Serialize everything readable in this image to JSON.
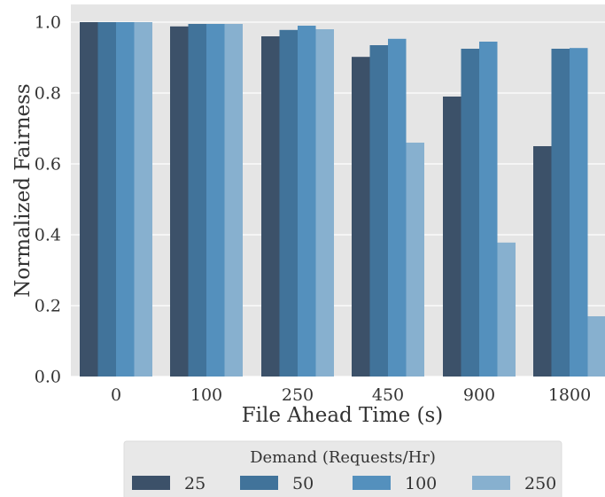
{
  "colors": {
    "panel_background": "#e5e5e5",
    "grid": "#ffffff",
    "legend_background": "#e8e8e8",
    "text": "#333333"
  },
  "chart_data": {
    "type": "bar",
    "xlabel": "File Ahead Time (s)",
    "ylabel": "Normalized Fairness",
    "categories": [
      "0",
      "100",
      "250",
      "450",
      "900",
      "1800"
    ],
    "ylim": [
      0,
      1.05
    ],
    "yticks": [
      "0.0",
      "0.2",
      "0.4",
      "0.6",
      "0.8",
      "1.0"
    ],
    "grid": true,
    "legend": {
      "title": "Demand (Requests/Hr)",
      "placement": "bottom"
    },
    "series": [
      {
        "name": "25",
        "color": "#3c5169",
        "values": [
          1.0,
          0.988,
          0.96,
          0.902,
          0.79,
          0.65
        ]
      },
      {
        "name": "50",
        "color": "#41739a",
        "values": [
          1.0,
          0.995,
          0.978,
          0.935,
          0.925,
          0.925
        ]
      },
      {
        "name": "100",
        "color": "#5490bd",
        "values": [
          1.0,
          0.995,
          0.99,
          0.953,
          0.945,
          0.927
        ]
      },
      {
        "name": "250",
        "color": "#87b0cf",
        "values": [
          1.0,
          0.995,
          0.98,
          0.66,
          0.378,
          0.17
        ]
      }
    ]
  }
}
